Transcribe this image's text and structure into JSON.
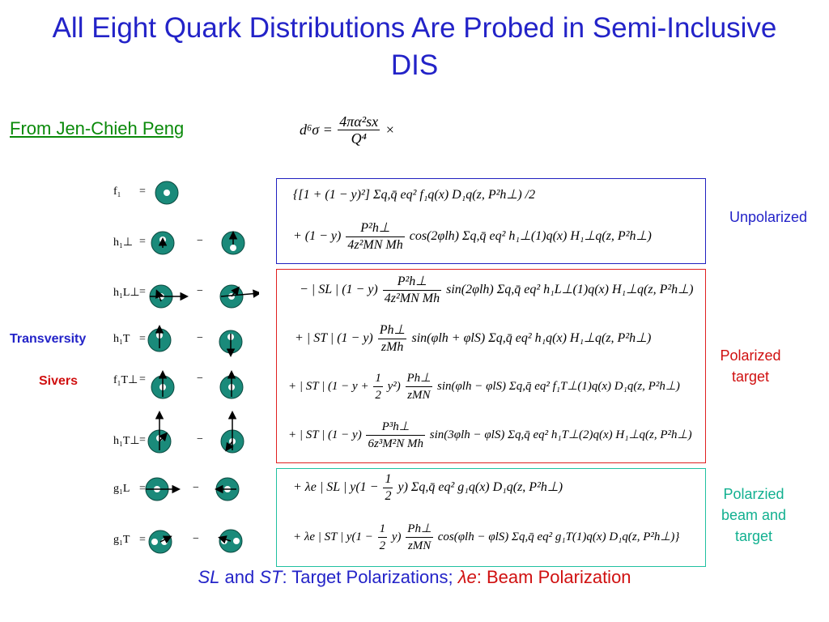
{
  "title": "All Eight Quark Distributions Are Probed in Semi-Inclusive DIS",
  "credit": "From Jen-Chieh Peng",
  "prefactor": {
    "lhs": "d⁶σ =",
    "numerator": "4πα²sx",
    "denominator": "Q⁴",
    "times": "×"
  },
  "side_labels": {
    "transversity": "Transversity",
    "sivers": "Sivers",
    "unpolarized": "Unpolarized",
    "polarized_target": "Polarized target",
    "polarized_beam_target": "Polarzied beam and target"
  },
  "distributions": [
    {
      "label": "f₁",
      "eq": "="
    },
    {
      "label": "h₁⊥",
      "eq": "=",
      "minus": "−"
    },
    {
      "label": "h₁L⊥",
      "eq": "=",
      "minus": "−"
    },
    {
      "label": "h₁T",
      "eq": "=",
      "minus": "−"
    },
    {
      "label": "f₁T⊥",
      "eq": "=",
      "minus": "−"
    },
    {
      "label": "h₁T⊥",
      "eq": "=",
      "minus": "−"
    },
    {
      "label": "g₁L",
      "eq": "=",
      "minus": "−"
    },
    {
      "label": "g₁T",
      "eq": "=",
      "minus": "−"
    }
  ],
  "equations": {
    "unpolarized_1": "{[1 + (1 − y)²] Σq,q̄ eq² f₁q(x) D₁q(z, P²h⊥) /2",
    "unpolarized_2_pre": "+ (1 − y)",
    "unpolarized_2_num": "P²h⊥",
    "unpolarized_2_den": "4z²MN Mh",
    "unpolarized_2_post": "cos(2φlh) Σq,q̄ eq² h₁⊥(1)q(x) H₁⊥q(z, P²h⊥)",
    "pol_1_pre": "− | SL | (1 − y)",
    "pol_1_num": "P²h⊥",
    "pol_1_den": "4z²MN Mh",
    "pol_1_post": "sin(2φlh) Σq,q̄ eq² h₁L⊥(1)q(x) H₁⊥q(z, P²h⊥)",
    "pol_2_pre": "+ | ST | (1 − y)",
    "pol_2_num": "Ph⊥",
    "pol_2_den": "zMh",
    "pol_2_post": "sin(φlh + φlS) Σq,q̄ eq² h₁q(x) H₁⊥q(z, P²h⊥)",
    "pol_3_pre": "+ | ST | (1 − y +",
    "pol_3_half_num": "1",
    "pol_3_half_den": "2",
    "pol_3_mid": "y²)",
    "pol_3_num": "Ph⊥",
    "pol_3_den": "zMN",
    "pol_3_post": "sin(φlh − φlS) Σq,q̄ eq² f₁T⊥(1)q(x) D₁q(z, P²h⊥)",
    "pol_4_pre": "+ | ST | (1 − y)",
    "pol_4_num": "P³h⊥",
    "pol_4_den": "6z³M²N Mh",
    "pol_4_post": "sin(3φlh − φlS) Σq,q̄ eq² h₁T⊥(2)q(x) H₁⊥q(z, P²h⊥)",
    "beam_1_pre": "+ λe | SL | y(1 −",
    "beam_1_half_num": "1",
    "beam_1_half_den": "2",
    "beam_1_post": "y) Σq,q̄ eq² g₁q(x) D₁q(z, P²h⊥)",
    "beam_2_pre": "+ λe | ST | y(1 −",
    "beam_2_half_num": "1",
    "beam_2_half_den": "2",
    "beam_2_mid": "y)",
    "beam_2_num": "Ph⊥",
    "beam_2_den": "zMN",
    "beam_2_post": "cos(φlh − φlS) Σq,q̄ eq² g₁T(1)q(x) D₁q(z, P²h⊥)}"
  },
  "bottom": {
    "s_l": "SL",
    "and": " and ",
    "s_t": "ST",
    "targets": ": Target Polarizations; ",
    "lambda": "λe",
    "beam": ": Beam Polarization"
  },
  "colors": {
    "title": "#2323c8",
    "credit": "#0a8a0a",
    "unpolarized_box": "#2020c0",
    "polarized_box": "#e02020",
    "beam_box": "#20c0a0",
    "nucleon": "#1a8a7a"
  }
}
